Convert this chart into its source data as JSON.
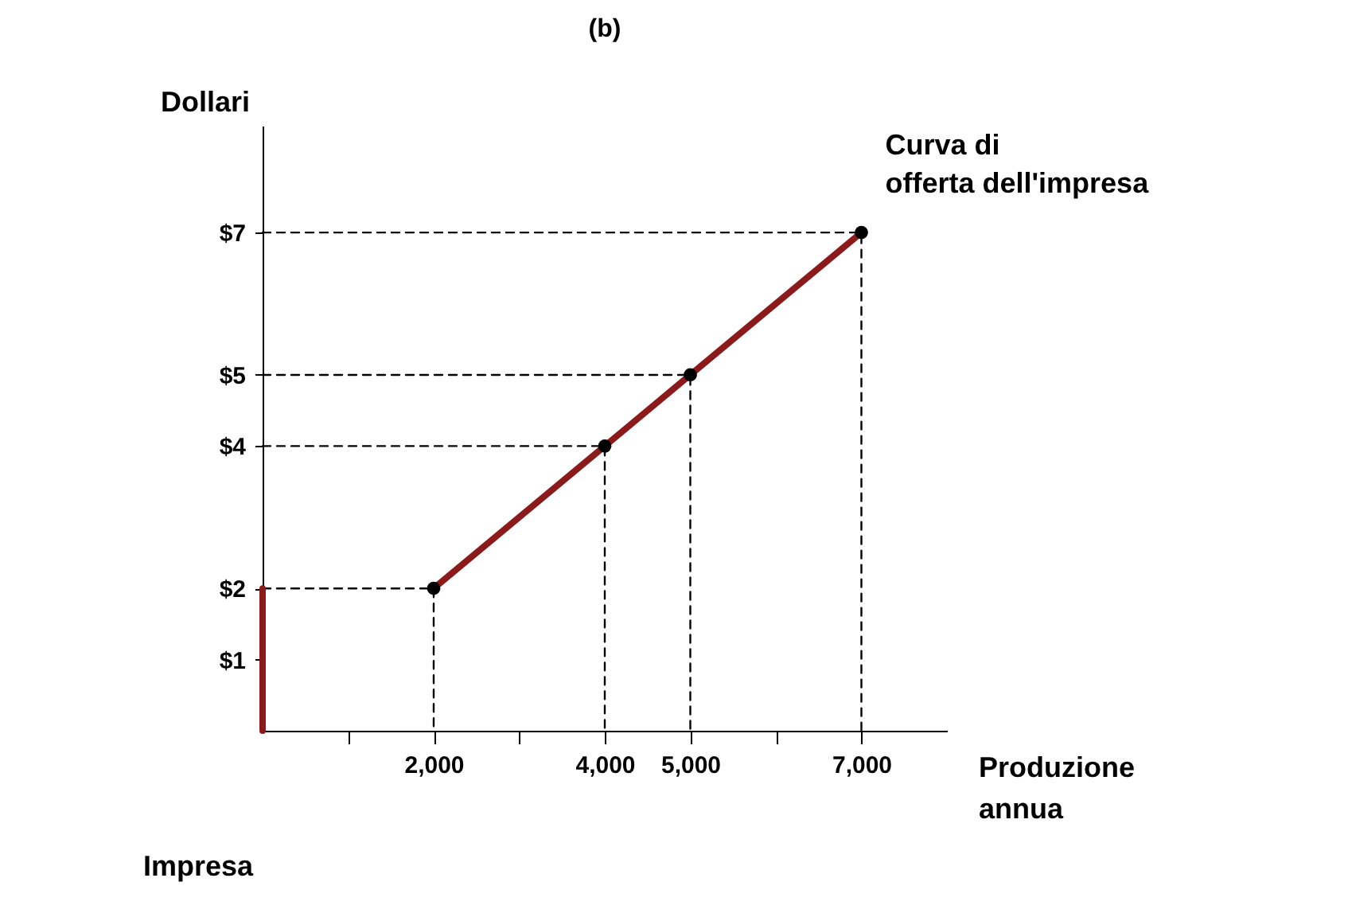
{
  "chart_data": {
    "type": "line",
    "title": "(b)",
    "ylabel": "Dollari",
    "xlabel": "Produzione annua",
    "annotations": [
      "Impresa"
    ],
    "xlim": [
      0,
      8000
    ],
    "ylim": [
      0,
      8.5
    ],
    "xticks": [
      {
        "value": 1000,
        "label": null
      },
      {
        "value": 2000,
        "label": "2,000"
      },
      {
        "value": 3000,
        "label": null
      },
      {
        "value": 4000,
        "label": "4,000"
      },
      {
        "value": 5000,
        "label": "5,000"
      },
      {
        "value": 6000,
        "label": null
      },
      {
        "value": 7000,
        "label": "7,000"
      }
    ],
    "yticks": [
      {
        "value": 1,
        "label": "$1"
      },
      {
        "value": 2,
        "label": "$2"
      },
      {
        "value": 4,
        "label": "$4"
      },
      {
        "value": 5,
        "label": "$5"
      },
      {
        "value": 7,
        "label": "$7"
      }
    ],
    "grid": false,
    "legend": false,
    "series": [
      {
        "type": "line",
        "line_style": "dashed",
        "color": "#000000",
        "x": [
          0,
          2000,
          2000
        ],
        "values": [
          2,
          2,
          0
        ]
      },
      {
        "type": "line",
        "line_style": "dashed",
        "color": "#000000",
        "x": [
          0,
          4000,
          4000
        ],
        "values": [
          4,
          4,
          0
        ]
      },
      {
        "type": "line",
        "line_style": "dashed",
        "color": "#000000",
        "x": [
          0,
          5000,
          5000
        ],
        "values": [
          5,
          5,
          0
        ]
      },
      {
        "type": "line",
        "line_style": "dashed",
        "color": "#000000",
        "x": [
          0,
          7000,
          7000
        ],
        "values": [
          7,
          7,
          0
        ]
      },
      {
        "type": "line",
        "line_style": "solid",
        "color": "#8b1a1a",
        "x": [
          0,
          0
        ],
        "values": [
          0,
          2
        ]
      },
      {
        "line_style": "solid",
        "color": "#8b1a1a",
        "name": "Curva di offerta dell'impresa",
        "x": [
          2000,
          4000,
          5000,
          7000
        ],
        "values": [
          2,
          4,
          5,
          7
        ]
      },
      {
        "type": "scatter",
        "marker": "circle",
        "color": "#000000",
        "x": [
          2000,
          4000,
          5000,
          7000
        ],
        "values": [
          2,
          4,
          5,
          7
        ]
      }
    ]
  }
}
